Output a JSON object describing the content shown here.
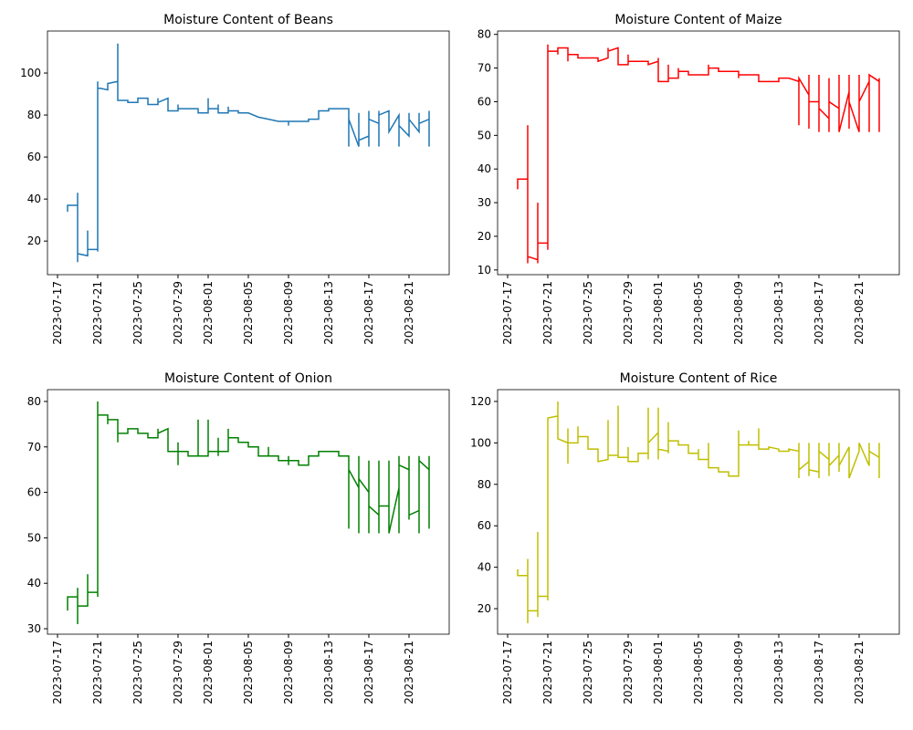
{
  "chart_data": [
    {
      "type": "line",
      "title": "Moisture Content of Beans",
      "color": "#1f77b4",
      "x": [
        "2023-07-18",
        "2023-07-18",
        "2023-07-19",
        "2023-07-19",
        "2023-07-19",
        "2023-07-19",
        "2023-07-20",
        "2023-07-20",
        "2023-07-20",
        "2023-07-21",
        "2023-07-21",
        "2023-07-21",
        "2023-07-21",
        "2023-07-22",
        "2023-07-22",
        "2023-07-23",
        "2023-07-23",
        "2023-07-23",
        "2023-07-24",
        "2023-07-24",
        "2023-07-25",
        "2023-07-25",
        "2023-07-26",
        "2023-07-26",
        "2023-07-27",
        "2023-07-27",
        "2023-07-27",
        "2023-07-28",
        "2023-07-28",
        "2023-07-29",
        "2023-07-29",
        "2023-07-29",
        "2023-07-30",
        "2023-07-31",
        "2023-07-31",
        "2023-08-01",
        "2023-08-01",
        "2023-08-01",
        "2023-08-02",
        "2023-08-02",
        "2023-08-02",
        "2023-08-03",
        "2023-08-03",
        "2023-08-03",
        "2023-08-04",
        "2023-08-04",
        "2023-08-05",
        "2023-08-06",
        "2023-08-07",
        "2023-08-08",
        "2023-08-09",
        "2023-08-09",
        "2023-08-09",
        "2023-08-10",
        "2023-08-11",
        "2023-08-11",
        "2023-08-12",
        "2023-08-12",
        "2023-08-13",
        "2023-08-13",
        "2023-08-14",
        "2023-08-15",
        "2023-08-15",
        "2023-08-15",
        "2023-08-16",
        "2023-08-16",
        "2023-08-16",
        "2023-08-17",
        "2023-08-17",
        "2023-08-17",
        "2023-08-17",
        "2023-08-18",
        "2023-08-18",
        "2023-08-18",
        "2023-08-18",
        "2023-08-19",
        "2023-08-19",
        "2023-08-20",
        "2023-08-20",
        "2023-08-20",
        "2023-08-21",
        "2023-08-21",
        "2023-08-21",
        "2023-08-22",
        "2023-08-22",
        "2023-08-22",
        "2023-08-23",
        "2023-08-23",
        "2023-08-23"
      ],
      "values": [
        34,
        37,
        37,
        43,
        10,
        14,
        13,
        25,
        16,
        16,
        15,
        96,
        93,
        92,
        95,
        96,
        114,
        87,
        87,
        86,
        86,
        88,
        88,
        85,
        85,
        88,
        86,
        88,
        82,
        82,
        85,
        83,
        83,
        83,
        81,
        81,
        88,
        83,
        83,
        85,
        81,
        81,
        84,
        82,
        82,
        81,
        81,
        79,
        78,
        77,
        77,
        75,
        77,
        77,
        77,
        78,
        78,
        82,
        82,
        83,
        83,
        83,
        65,
        78,
        65,
        81,
        68,
        70,
        82,
        65,
        78,
        76,
        82,
        65,
        80,
        82,
        72,
        80,
        65,
        75,
        70,
        81,
        78,
        72,
        81,
        76,
        78,
        82,
        65
      ],
      "xlim": [
        "2023-07-16",
        "2023-08-25"
      ],
      "xticks": [
        "2023-07-17",
        "2023-07-21",
        "2023-07-25",
        "2023-07-29",
        "2023-08-01",
        "2023-08-05",
        "2023-08-09",
        "2023-08-13",
        "2023-08-17",
        "2023-08-21"
      ],
      "ylim": [
        4,
        120
      ],
      "yticks": [
        20,
        40,
        60,
        80,
        100
      ]
    },
    {
      "type": "line",
      "title": "Moisture Content of Maize",
      "color": "#ff0000",
      "x": [
        "2023-07-18",
        "2023-07-18",
        "2023-07-19",
        "2023-07-19",
        "2023-07-19",
        "2023-07-19",
        "2023-07-20",
        "2023-07-20",
        "2023-07-20",
        "2023-07-20",
        "2023-07-21",
        "2023-07-21",
        "2023-07-21",
        "2023-07-21",
        "2023-07-22",
        "2023-07-22",
        "2023-07-22",
        "2023-07-23",
        "2023-07-23",
        "2023-07-23",
        "2023-07-24",
        "2023-07-24",
        "2023-07-25",
        "2023-07-26",
        "2023-07-26",
        "2023-07-27",
        "2023-07-27",
        "2023-07-27",
        "2023-07-28",
        "2023-07-28",
        "2023-07-29",
        "2023-07-29",
        "2023-07-29",
        "2023-07-30",
        "2023-07-31",
        "2023-07-31",
        "2023-08-01",
        "2023-08-01",
        "2023-08-01",
        "2023-08-02",
        "2023-08-02",
        "2023-08-02",
        "2023-08-03",
        "2023-08-03",
        "2023-08-03",
        "2023-08-04",
        "2023-08-04",
        "2023-08-05",
        "2023-08-06",
        "2023-08-06",
        "2023-08-06",
        "2023-08-07",
        "2023-08-07",
        "2023-08-08",
        "2023-08-09",
        "2023-08-09",
        "2023-08-09",
        "2023-08-10",
        "2023-08-11",
        "2023-08-11",
        "2023-08-12",
        "2023-08-13",
        "2023-08-13",
        "2023-08-14",
        "2023-08-15",
        "2023-08-15",
        "2023-08-15",
        "2023-08-16",
        "2023-08-16",
        "2023-08-16",
        "2023-08-16",
        "2023-08-17",
        "2023-08-17",
        "2023-08-17",
        "2023-08-17",
        "2023-08-18",
        "2023-08-18",
        "2023-08-18",
        "2023-08-18",
        "2023-08-19",
        "2023-08-19",
        "2023-08-19",
        "2023-08-20",
        "2023-08-20",
        "2023-08-20",
        "2023-08-20",
        "2023-08-21",
        "2023-08-21",
        "2023-08-21",
        "2023-08-22",
        "2023-08-22",
        "2023-08-22",
        "2023-08-23",
        "2023-08-23",
        "2023-08-23"
      ],
      "values": [
        34,
        37,
        37,
        53,
        12,
        14,
        13,
        30,
        12,
        18,
        18,
        16,
        77,
        75,
        75,
        74,
        76,
        76,
        72,
        74,
        74,
        73,
        73,
        73,
        72,
        73,
        76,
        75,
        76,
        71,
        71,
        74,
        72,
        72,
        72,
        71,
        72,
        73,
        66,
        66,
        71,
        67,
        67,
        70,
        69,
        69,
        68,
        68,
        68,
        71,
        70,
        70,
        69,
        69,
        69,
        67,
        68,
        68,
        68,
        66,
        66,
        66,
        67,
        67,
        66,
        53,
        67,
        62,
        52,
        68,
        60,
        60,
        51,
        68,
        58,
        55,
        67,
        51,
        60,
        58,
        68,
        51,
        63,
        68,
        52,
        60,
        51,
        68,
        60,
        66,
        51,
        68,
        66,
        51,
        67
      ],
      "xlim": [
        "2023-07-16",
        "2023-08-25"
      ],
      "xticks": [
        "2023-07-17",
        "2023-07-21",
        "2023-07-25",
        "2023-07-29",
        "2023-08-01",
        "2023-08-05",
        "2023-08-09",
        "2023-08-13",
        "2023-08-17",
        "2023-08-21"
      ],
      "ylim": [
        8.6,
        81
      ],
      "yticks": [
        10,
        20,
        30,
        40,
        50,
        60,
        70,
        80
      ]
    },
    {
      "type": "line",
      "title": "Moisture Content of Onion",
      "color": "#008000",
      "x": [
        "2023-07-18",
        "2023-07-18",
        "2023-07-19",
        "2023-07-19",
        "2023-07-19",
        "2023-07-19",
        "2023-07-20",
        "2023-07-20",
        "2023-07-20",
        "2023-07-21",
        "2023-07-21",
        "2023-07-21",
        "2023-07-21",
        "2023-07-22",
        "2023-07-22",
        "2023-07-22",
        "2023-07-23",
        "2023-07-23",
        "2023-07-23",
        "2023-07-24",
        "2023-07-24",
        "2023-07-25",
        "2023-07-25",
        "2023-07-26",
        "2023-07-26",
        "2023-07-27",
        "2023-07-27",
        "2023-07-27",
        "2023-07-28",
        "2023-07-28",
        "2023-07-29",
        "2023-07-29",
        "2023-07-29",
        "2023-07-29",
        "2023-07-30",
        "2023-07-30",
        "2023-07-31",
        "2023-07-31",
        "2023-07-31",
        "2023-08-01",
        "2023-08-01",
        "2023-08-01",
        "2023-08-02",
        "2023-08-02",
        "2023-08-02",
        "2023-08-02",
        "2023-08-03",
        "2023-08-03",
        "2023-08-03",
        "2023-08-04",
        "2023-08-04",
        "2023-08-05",
        "2023-08-05",
        "2023-08-06",
        "2023-08-06",
        "2023-08-07",
        "2023-08-07",
        "2023-08-07",
        "2023-08-08",
        "2023-08-08",
        "2023-08-09",
        "2023-08-09",
        "2023-08-09",
        "2023-08-09",
        "2023-08-10",
        "2023-08-10",
        "2023-08-11",
        "2023-08-11",
        "2023-08-12",
        "2023-08-12",
        "2023-08-13",
        "2023-08-14",
        "2023-08-14",
        "2023-08-15",
        "2023-08-15",
        "2023-08-15",
        "2023-08-16",
        "2023-08-16",
        "2023-08-16",
        "2023-08-16",
        "2023-08-17",
        "2023-08-17",
        "2023-08-17",
        "2023-08-17",
        "2023-08-18",
        "2023-08-18",
        "2023-08-18",
        "2023-08-18",
        "2023-08-19",
        "2023-08-19",
        "2023-08-19",
        "2023-08-20",
        "2023-08-20",
        "2023-08-20",
        "2023-08-20",
        "2023-08-21",
        "2023-08-21",
        "2023-08-21",
        "2023-08-21",
        "2023-08-22",
        "2023-08-22",
        "2023-08-22",
        "2023-08-22",
        "2023-08-23",
        "2023-08-23",
        "2023-08-23"
      ],
      "values": [
        34,
        37,
        37,
        39,
        31,
        35,
        35,
        42,
        38,
        38,
        37,
        80,
        77,
        77,
        75,
        76,
        76,
        71,
        73,
        73,
        74,
        74,
        73,
        73,
        72,
        72,
        74,
        73,
        74,
        69,
        69,
        71,
        66,
        69,
        69,
        68,
        68,
        76,
        68,
        68,
        76,
        69,
        69,
        72,
        68,
        69,
        69,
        74,
        72,
        72,
        71,
        71,
        70,
        70,
        68,
        68,
        70,
        68,
        68,
        67,
        67,
        68,
        66,
        67,
        67,
        66,
        66,
        68,
        68,
        69,
        69,
        69,
        68,
        68,
        52,
        65,
        61,
        68,
        51,
        63,
        60,
        67,
        51,
        57,
        55,
        67,
        51,
        57,
        57,
        67,
        51,
        61,
        68,
        51,
        66,
        65,
        68,
        54,
        55,
        56,
        68,
        51,
        67,
        65,
        68,
        52
      ],
      "xlim": [
        "2023-07-16",
        "2023-08-25"
      ],
      "xticks": [
        "2023-07-17",
        "2023-07-21",
        "2023-07-25",
        "2023-07-29",
        "2023-08-01",
        "2023-08-05",
        "2023-08-09",
        "2023-08-13",
        "2023-08-17",
        "2023-08-21"
      ],
      "ylim": [
        28.8,
        82.6
      ],
      "yticks": [
        30,
        40,
        50,
        60,
        70,
        80
      ]
    },
    {
      "type": "line",
      "title": "Moisture Content of Rice",
      "color": "#bfbf00",
      "x": [
        "2023-07-18",
        "2023-07-18",
        "2023-07-19",
        "2023-07-19",
        "2023-07-19",
        "2023-07-19",
        "2023-07-20",
        "2023-07-20",
        "2023-07-20",
        "2023-07-20",
        "2023-07-21",
        "2023-07-21",
        "2023-07-21",
        "2023-07-22",
        "2023-07-22",
        "2023-07-22",
        "2023-07-23",
        "2023-07-23",
        "2023-07-23",
        "2023-07-23",
        "2023-07-24",
        "2023-07-24",
        "2023-07-24",
        "2023-07-25",
        "2023-07-25",
        "2023-07-26",
        "2023-07-26",
        "2023-07-27",
        "2023-07-27",
        "2023-07-27",
        "2023-07-28",
        "2023-07-28",
        "2023-07-28",
        "2023-07-29",
        "2023-07-29",
        "2023-07-29",
        "2023-07-30",
        "2023-07-30",
        "2023-07-31",
        "2023-07-31",
        "2023-07-31",
        "2023-07-31",
        "2023-08-01",
        "2023-08-01",
        "2023-08-01",
        "2023-08-01",
        "2023-08-02",
        "2023-08-02",
        "2023-08-02",
        "2023-08-02",
        "2023-08-03",
        "2023-08-03",
        "2023-08-04",
        "2023-08-04",
        "2023-08-05",
        "2023-08-05",
        "2023-08-05",
        "2023-08-06",
        "2023-08-06",
        "2023-08-06",
        "2023-08-07",
        "2023-08-07",
        "2023-08-08",
        "2023-08-08",
        "2023-08-09",
        "2023-08-09",
        "2023-08-09",
        "2023-08-10",
        "2023-08-10",
        "2023-08-10",
        "2023-08-11",
        "2023-08-11",
        "2023-08-11",
        "2023-08-12",
        "2023-08-12",
        "2023-08-13",
        "2023-08-13",
        "2023-08-14",
        "2023-08-14",
        "2023-08-15",
        "2023-08-15",
        "2023-08-15",
        "2023-08-15",
        "2023-08-16",
        "2023-08-16",
        "2023-08-16",
        "2023-08-16",
        "2023-08-17",
        "2023-08-17",
        "2023-08-17",
        "2023-08-17",
        "2023-08-18",
        "2023-08-18",
        "2023-08-18",
        "2023-08-18",
        "2023-08-19",
        "2023-08-19",
        "2023-08-19",
        "2023-08-19",
        "2023-08-20",
        "2023-08-20",
        "2023-08-20",
        "2023-08-20",
        "2023-08-21",
        "2023-08-21",
        "2023-08-22",
        "2023-08-22",
        "2023-08-22",
        "2023-08-23",
        "2023-08-23",
        "2023-08-23"
      ],
      "values": [
        39,
        36,
        36,
        44,
        13,
        19,
        19,
        57,
        16,
        26,
        26,
        24,
        112,
        113,
        120,
        102,
        100,
        107,
        90,
        100,
        100,
        108,
        103,
        103,
        97,
        97,
        91,
        92,
        111,
        94,
        94,
        118,
        93,
        93,
        98,
        91,
        91,
        95,
        95,
        117,
        92,
        100,
        105,
        117,
        92,
        97,
        96,
        110,
        95,
        101,
        101,
        99,
        99,
        95,
        95,
        97,
        92,
        92,
        100,
        88,
        88,
        86,
        86,
        84,
        84,
        106,
        99,
        99,
        101,
        99,
        99,
        107,
        97,
        97,
        98,
        97,
        96,
        96,
        97,
        96,
        83,
        100,
        87,
        91,
        84,
        100,
        87,
        86,
        100,
        83,
        96,
        92,
        84,
        100,
        89,
        94,
        86,
        100,
        89,
        98,
        83,
        90,
        83,
        96,
        100,
        89,
        100,
        96,
        93,
        83,
        100
      ],
      "xlim": [
        "2023-07-16",
        "2023-08-25"
      ],
      "xticks": [
        "2023-07-17",
        "2023-07-21",
        "2023-07-25",
        "2023-07-29",
        "2023-08-01",
        "2023-08-05",
        "2023-08-09",
        "2023-08-13",
        "2023-08-17",
        "2023-08-21"
      ],
      "ylim": [
        7.7,
        125.7
      ],
      "yticks": [
        20,
        40,
        60,
        80,
        100,
        120
      ]
    }
  ]
}
